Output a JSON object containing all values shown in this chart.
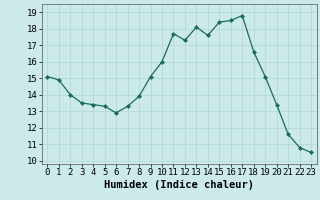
{
  "x": [
    0,
    1,
    2,
    3,
    4,
    5,
    6,
    7,
    8,
    9,
    10,
    11,
    12,
    13,
    14,
    15,
    16,
    17,
    18,
    19,
    20,
    21,
    22,
    23
  ],
  "y": [
    15.1,
    14.9,
    14.0,
    13.5,
    13.4,
    13.3,
    12.9,
    13.3,
    13.9,
    15.1,
    16.0,
    17.7,
    17.3,
    18.1,
    17.6,
    18.4,
    18.5,
    18.8,
    16.6,
    15.1,
    13.4,
    11.6,
    10.8,
    10.5
  ],
  "xlabel": "Humidex (Indice chaleur)",
  "ylim": [
    9.8,
    19.5
  ],
  "xlim": [
    -0.5,
    23.5
  ],
  "yticks": [
    10,
    11,
    12,
    13,
    14,
    15,
    16,
    17,
    18,
    19
  ],
  "xticks": [
    0,
    1,
    2,
    3,
    4,
    5,
    6,
    7,
    8,
    9,
    10,
    11,
    12,
    13,
    14,
    15,
    16,
    17,
    18,
    19,
    20,
    21,
    22,
    23
  ],
  "xtick_labels": [
    "0",
    "1",
    "2",
    "3",
    "4",
    "5",
    "6",
    "7",
    "8",
    "9",
    "10",
    "11",
    "12",
    "13",
    "14",
    "15",
    "16",
    "17",
    "18",
    "19",
    "20",
    "21",
    "22",
    "23"
  ],
  "line_color": "#1a6b5a",
  "marker": "D",
  "marker_size": 2.0,
  "bg_color": "#cdeaea",
  "grid_color": "#b0d5d5",
  "tick_fontsize": 6.5,
  "xlabel_fontsize": 7.5
}
